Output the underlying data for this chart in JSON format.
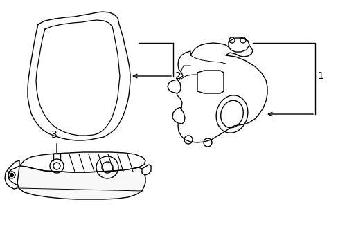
{
  "background_color": "#ffffff",
  "line_color": "#000000",
  "line_width": 1.0,
  "label_fontsize": 10,
  "figsize": [
    4.89,
    3.6
  ],
  "dpi": 100
}
